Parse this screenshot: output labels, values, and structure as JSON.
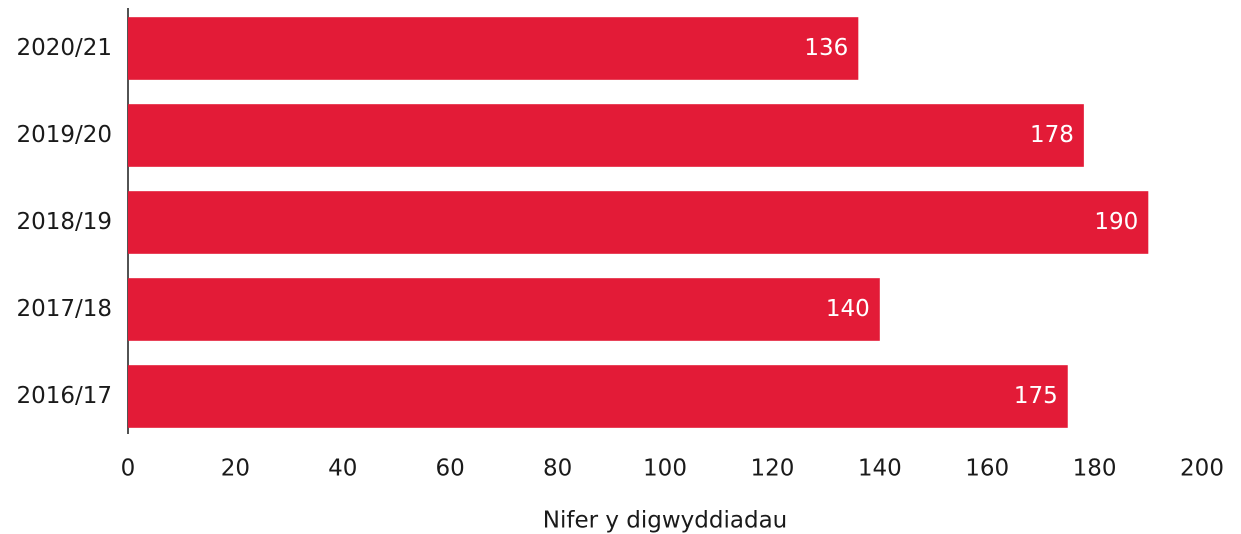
{
  "chart_data": {
    "type": "bar",
    "orientation": "horizontal",
    "categories": [
      "2020/21",
      "2019/20",
      "2018/19",
      "2017/18",
      "2016/17"
    ],
    "values": [
      136,
      178,
      190,
      140,
      175
    ],
    "color": "#e31b37",
    "x_label": "Nifer y digwyddiadau",
    "xlim": [
      0,
      200
    ],
    "xticks": [
      0,
      20,
      40,
      60,
      80,
      100,
      120,
      140,
      160,
      180,
      200
    ],
    "grid": false
  }
}
